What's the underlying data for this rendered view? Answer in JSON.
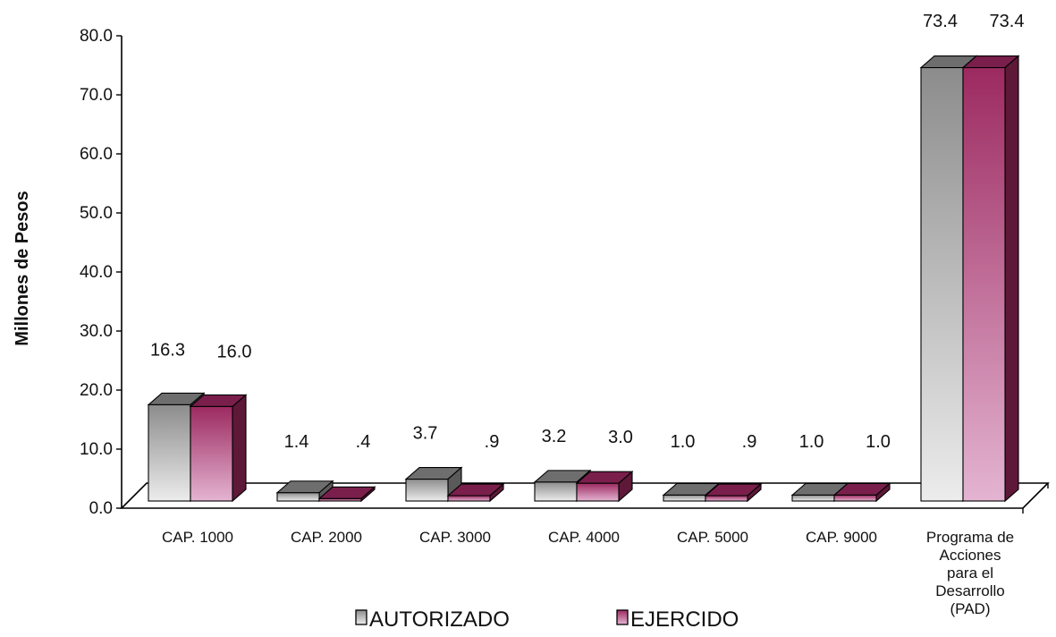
{
  "chart_data": {
    "type": "bar",
    "ylabel": "Millones de Pesos",
    "ylim": [
      0,
      80
    ],
    "yticks": [
      "0.0",
      "10.0",
      "20.0",
      "30.0",
      "40.0",
      "50.0",
      "60.0",
      "70.0",
      "80.0"
    ],
    "categories": [
      [
        "CAP. 1000"
      ],
      [
        "CAP. 2000"
      ],
      [
        "CAP. 3000"
      ],
      [
        "CAP. 4000"
      ],
      [
        "CAP. 5000"
      ],
      [
        "CAP. 9000"
      ],
      [
        "Programa de",
        "Acciones",
        "para el",
        "Desarrollo",
        "(PAD)"
      ]
    ],
    "series": [
      {
        "name": "AUTORIZADO",
        "values": [
          16.3,
          1.4,
          3.7,
          3.2,
          1.0,
          1.0,
          73.4
        ],
        "labels": [
          "16.3",
          "1.4",
          "3.7",
          "3.2",
          "1.0",
          "1.0",
          "73.4"
        ],
        "color": "#8c8c8c",
        "color_light": "#ececec",
        "color_top": "#6e6e6e",
        "color_side": "#5a5a5a"
      },
      {
        "name": "EJERCIDO",
        "values": [
          16.0,
          0.4,
          0.9,
          3.0,
          0.9,
          1.0,
          73.4
        ],
        "labels": [
          "16.0",
          ".4",
          ".9",
          "3.0",
          ".9",
          "1.0",
          "73.4"
        ],
        "color": "#9c2a60",
        "color_light": "#e4b4d2",
        "color_top": "#7a1f4c",
        "color_side": "#5e1838"
      }
    ],
    "legend_position": "bottom",
    "grid": false
  }
}
